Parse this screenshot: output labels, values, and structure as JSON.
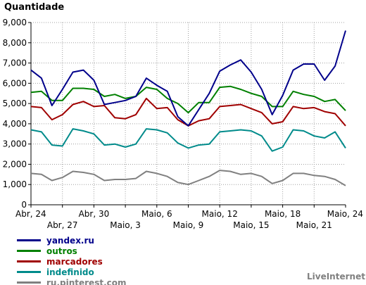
{
  "chart_data": {
    "type": "line",
    "ylabel": "Quantidade",
    "ylim": [
      0,
      9000
    ],
    "yticks": [
      "0",
      "1,000",
      "2,000",
      "3,000",
      "4,000",
      "5,000",
      "6,000",
      "7,000",
      "8,000",
      "9,000"
    ],
    "x": [
      "Abr, 24",
      "Abr, 25",
      "Abr, 26",
      "Abr, 27",
      "Abr, 28",
      "Abr, 29",
      "Abr, 30",
      "Maio, 1",
      "Maio, 2",
      "Maio, 3",
      "Maio, 4",
      "Maio, 5",
      "Maio, 6",
      "Maio, 7",
      "Maio, 8",
      "Maio, 9",
      "Maio, 10",
      "Maio, 11",
      "Maio, 12",
      "Maio, 13",
      "Maio, 14",
      "Maio, 15",
      "Maio, 16",
      "Maio, 17",
      "Maio, 18",
      "Maio, 19",
      "Maio, 20",
      "Maio, 21",
      "Maio, 22",
      "Maio, 23",
      "Maio, 24"
    ],
    "xticks_top": [
      {
        "index": 0,
        "label": "Abr, 24"
      },
      {
        "index": 6,
        "label": "Abr, 30"
      },
      {
        "index": 12,
        "label": "Maio, 6"
      },
      {
        "index": 18,
        "label": "Maio, 12"
      },
      {
        "index": 24,
        "label": "Maio, 18"
      },
      {
        "index": 30,
        "label": "Maio, 24"
      }
    ],
    "xticks_bottom": [
      {
        "index": 3,
        "label": "Abr, 27"
      },
      {
        "index": 9,
        "label": "Maio, 3"
      },
      {
        "index": 15,
        "label": "Maio, 9"
      },
      {
        "index": 21,
        "label": "Maio, 15"
      },
      {
        "index": 27,
        "label": "Maio, 21"
      }
    ],
    "grid": true,
    "legend_position": "bottom-left",
    "series": [
      {
        "name": "yandex.ru",
        "color": "#00008b",
        "values": [
          6650,
          6250,
          4900,
          5700,
          6550,
          6650,
          6150,
          4950,
          5050,
          5150,
          5350,
          6250,
          5900,
          5600,
          4350,
          3900,
          4700,
          5500,
          6600,
          6900,
          7150,
          6550,
          5700,
          4450,
          5400,
          6650,
          6950,
          6950,
          6150,
          6850,
          8600
        ]
      },
      {
        "name": "outros",
        "color": "#008000",
        "values": [
          5550,
          5600,
          5150,
          5150,
          5750,
          5750,
          5700,
          5350,
          5450,
          5250,
          5350,
          5800,
          5700,
          5250,
          5000,
          4550,
          5050,
          5050,
          5800,
          5850,
          5700,
          5500,
          5350,
          4850,
          4850,
          5600,
          5450,
          5350,
          5100,
          5200,
          4650
        ]
      },
      {
        "name": "marcadores",
        "color": "#a00000",
        "values": [
          4850,
          4800,
          4200,
          4450,
          4950,
          5100,
          4850,
          4900,
          4300,
          4250,
          4450,
          5250,
          4750,
          4800,
          4200,
          3900,
          4150,
          4250,
          4850,
          4900,
          4950,
          4750,
          4550,
          4000,
          4100,
          4850,
          4750,
          4800,
          4600,
          4500,
          3900
        ]
      },
      {
        "name": "indefinido",
        "color": "#008b8b",
        "values": [
          3700,
          3600,
          2950,
          2900,
          3750,
          3650,
          3500,
          2950,
          3000,
          2850,
          3000,
          3750,
          3700,
          3550,
          3050,
          2800,
          2950,
          3000,
          3600,
          3650,
          3700,
          3650,
          3400,
          2650,
          2850,
          3700,
          3650,
          3400,
          3300,
          3600,
          2800
        ]
      },
      {
        "name": "ru.pinterest.com",
        "color": "#808080",
        "values": [
          1550,
          1500,
          1200,
          1350,
          1650,
          1600,
          1500,
          1200,
          1250,
          1250,
          1300,
          1650,
          1550,
          1400,
          1100,
          1000,
          1200,
          1400,
          1700,
          1650,
          1500,
          1550,
          1400,
          1050,
          1200,
          1550,
          1550,
          1450,
          1400,
          1250,
          950
        ]
      }
    ]
  },
  "credit": "LiveInternet"
}
